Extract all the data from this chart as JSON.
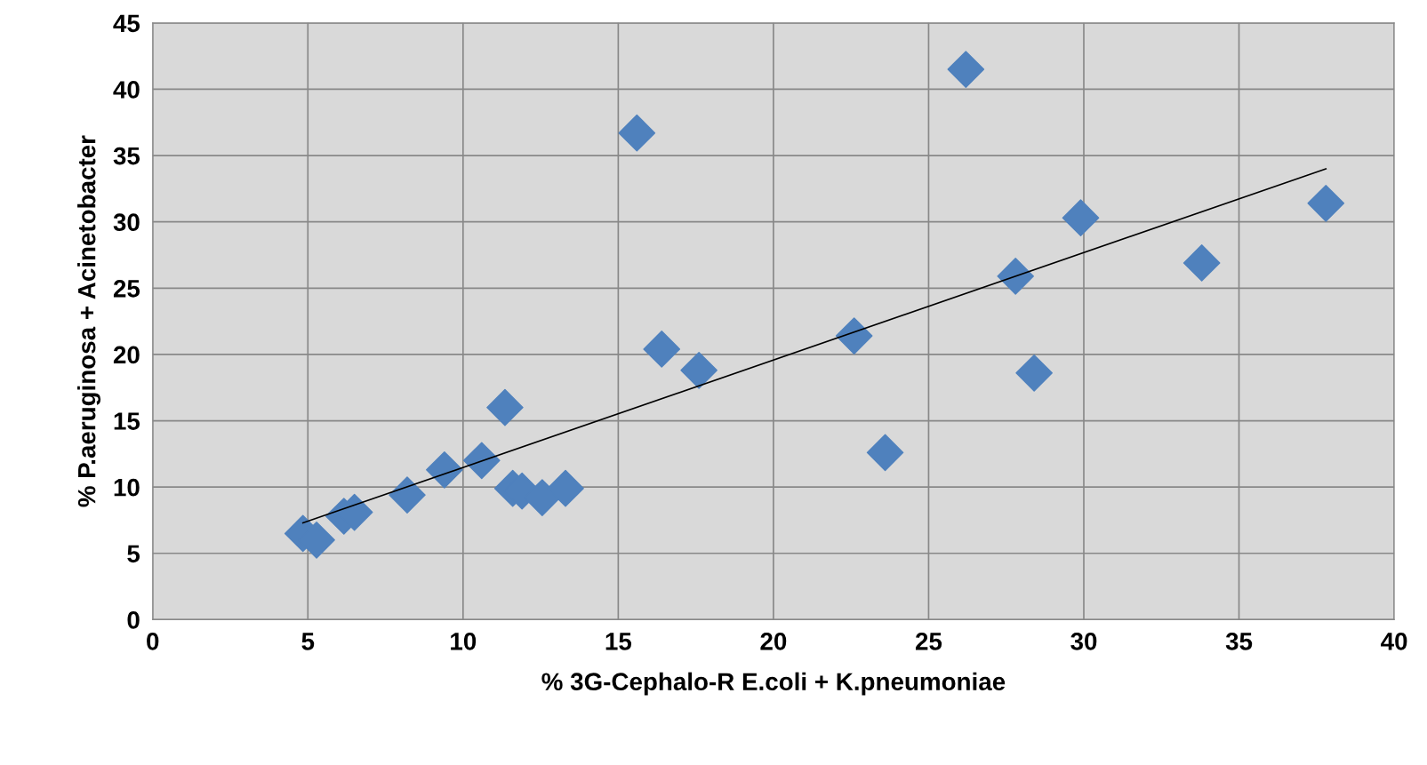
{
  "chart_data": {
    "type": "scatter",
    "xlabel": "% 3G-Cephalo-R E.coli + K.pneumoniae",
    "ylabel": "% P.aeruginosa + Acinetobacter",
    "xlim": [
      0,
      40
    ],
    "xticks": [
      0,
      5,
      10,
      15,
      20,
      25,
      30,
      35,
      40
    ],
    "ylim": [
      0,
      45
    ],
    "yticks": [
      0,
      5,
      10,
      15,
      20,
      25,
      30,
      35,
      40,
      45
    ],
    "grid": true,
    "series": [
      {
        "marker": "diamond",
        "color": "#4f81bd",
        "x": [
          4.84,
          5.28,
          6.16,
          6.5,
          8.2,
          9.4,
          10.6,
          11.35,
          11.6,
          11.9,
          12.55,
          13.3,
          15.6,
          16.4,
          17.6,
          22.6,
          23.6,
          26.2,
          27.8,
          28.4,
          29.9,
          33.8,
          37.8
        ],
        "values": [
          6.5,
          6.0,
          7.8,
          8.1,
          9.4,
          11.3,
          12.0,
          16.0,
          9.9,
          9.7,
          9.2,
          9.9,
          36.7,
          20.4,
          18.8,
          21.4,
          12.6,
          41.5,
          25.9,
          18.6,
          30.3,
          26.9,
          31.4
        ]
      },
      {
        "type": "line",
        "color": "#000000",
        "x": [
          4.84,
          37.8
        ],
        "values": [
          7.3,
          34.0
        ]
      }
    ]
  }
}
